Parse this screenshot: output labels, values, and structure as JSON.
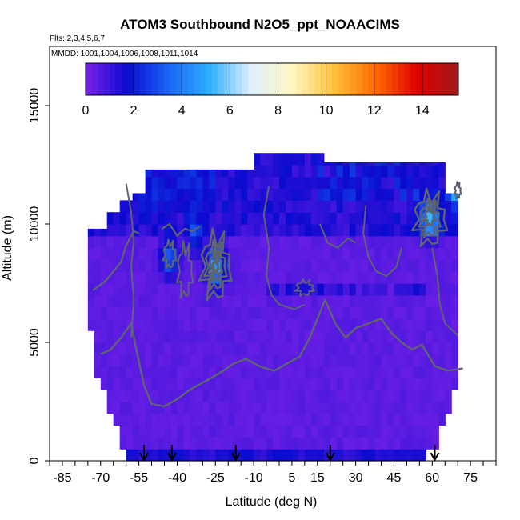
{
  "chart_data": {
    "type": "heatmap",
    "title": "ATOM3 Southbound N2O5_ppt_NOAACIMS",
    "subtitle_flights": "Flts: 2,3,4,5,6,7",
    "subtitle_dates": "MMDD: 1001,1004,1006,1008,1011,1014",
    "xlabel": "Latitude (deg N)",
    "ylabel": "Altitude (m)",
    "xlim": [
      -90,
      85
    ],
    "ylim": [
      0,
      17500
    ],
    "x_ticks": [
      -85,
      -70,
      -55,
      -40,
      -25,
      -10,
      5,
      15,
      30,
      45,
      60,
      75
    ],
    "y_ticks": [
      0,
      5000,
      10000,
      15000
    ],
    "colorbar": {
      "min": 0,
      "max": 15.5,
      "ticks": [
        0,
        2,
        4,
        6,
        8,
        10,
        12,
        14
      ],
      "colors": [
        "#7b22e8",
        "#0a0ad0",
        "#1a64f5",
        "#2fb0ff",
        "#dff0ff",
        "#fff6c0",
        "#ffc23a",
        "#ff6a00",
        "#e00000",
        "#9e1b1b"
      ]
    },
    "flight_markers_lat": [
      -53,
      -42,
      -17,
      20,
      61
    ],
    "grid": false,
    "legend": "colorbar-top",
    "hotspots": [
      {
        "lat": -25,
        "alt": 8200,
        "value": 5
      },
      {
        "lat": 59,
        "alt": 10200,
        "value": 4.5
      },
      {
        "lat": -43,
        "alt": 8600,
        "value": 3
      },
      {
        "lat": -33,
        "alt": 9500,
        "value": 2
      },
      {
        "lat": 70,
        "alt": 11400,
        "value": 4
      }
    ]
  }
}
